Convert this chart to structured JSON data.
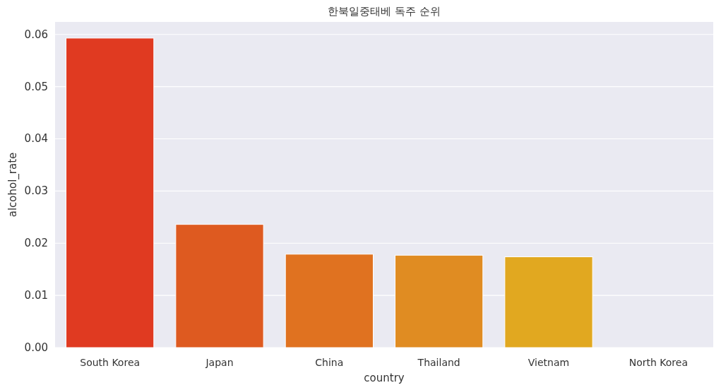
{
  "chart_data": {
    "type": "bar",
    "title": "한북일중태베 독주 순위",
    "xlabel": "country",
    "ylabel": "alcohol_rate",
    "categories": [
      "South Korea",
      "Japan",
      "China",
      "Thailand",
      "Vietnam",
      "North Korea"
    ],
    "values": [
      0.0593,
      0.0236,
      0.0179,
      0.0177,
      0.0174,
      0
    ],
    "colors": [
      "#e03a21",
      "#de5a20",
      "#e07220",
      "#e08c22",
      "#e1a820",
      "#e0c21f"
    ],
    "ylim": [
      0,
      0.0624
    ],
    "yticks": [
      {
        "value": 0,
        "label": "0.00"
      },
      {
        "value": 0.01,
        "label": "0.01"
      },
      {
        "value": 0.02,
        "label": "0.02"
      },
      {
        "value": 0.03,
        "label": "0.03"
      },
      {
        "value": 0.04,
        "label": "0.04"
      },
      {
        "value": 0.05,
        "label": "0.05"
      },
      {
        "value": 0.06,
        "label": "0.06"
      }
    ],
    "grid": "y"
  }
}
